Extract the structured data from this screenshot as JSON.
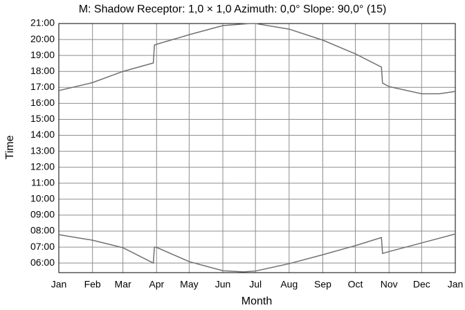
{
  "chart_data": {
    "type": "line",
    "title": "M: Shadow Receptor: 1,0 × 1,0  Azimuth: 0,0°  Slope: 90,0° (15)",
    "xlabel": "Month",
    "ylabel": "Time",
    "xlim": [
      0,
      365
    ],
    "xticks": [
      {
        "value": 0,
        "label": "Jan"
      },
      {
        "value": 31,
        "label": "Feb"
      },
      {
        "value": 59,
        "label": "Mar"
      },
      {
        "value": 90,
        "label": "Apr"
      },
      {
        "value": 120,
        "label": "May"
      },
      {
        "value": 151,
        "label": "Jun"
      },
      {
        "value": 181,
        "label": "Jul"
      },
      {
        "value": 212,
        "label": "Aug"
      },
      {
        "value": 243,
        "label": "Sep"
      },
      {
        "value": 273,
        "label": "Oct"
      },
      {
        "value": 304,
        "label": "Nov"
      },
      {
        "value": 334,
        "label": "Dec"
      },
      {
        "value": 365,
        "label": "Jan"
      }
    ],
    "ylim": [
      5.4,
      21
    ],
    "yticks": [
      {
        "value": 6,
        "label": "06:00"
      },
      {
        "value": 7,
        "label": "07:00"
      },
      {
        "value": 8,
        "label": "08:00"
      },
      {
        "value": 9,
        "label": "09:00"
      },
      {
        "value": 10,
        "label": "10:00"
      },
      {
        "value": 11,
        "label": "11:00"
      },
      {
        "value": 12,
        "label": "12:00"
      },
      {
        "value": 13,
        "label": "13:00"
      },
      {
        "value": 14,
        "label": "14:00"
      },
      {
        "value": 15,
        "label": "15:00"
      },
      {
        "value": 16,
        "label": "16:00"
      },
      {
        "value": 17,
        "label": "17:00"
      },
      {
        "value": 18,
        "label": "18:00"
      },
      {
        "value": 19,
        "label": "19:00"
      },
      {
        "value": 20,
        "label": "20:00"
      },
      {
        "value": 21,
        "label": "21:00"
      }
    ],
    "grid": true,
    "series": [
      {
        "color": "#707070",
        "x": [
          0,
          31,
          59,
          87,
          88,
          90,
          120,
          151,
          176,
          181,
          212,
          243,
          273,
          297,
          298,
          304,
          334,
          350,
          365
        ],
        "values": [
          16.8,
          17.3,
          18.0,
          18.53,
          19.65,
          19.7,
          20.3,
          20.87,
          21.0,
          21.0,
          20.65,
          19.96,
          19.1,
          18.27,
          17.27,
          17.05,
          16.6,
          16.6,
          16.75
        ]
      },
      {
        "color": "#707070",
        "x": [
          0,
          31,
          59,
          87,
          88,
          90,
          120,
          151,
          170,
          181,
          212,
          243,
          273,
          297,
          298,
          304,
          334,
          365
        ],
        "values": [
          7.78,
          7.43,
          6.96,
          6.0,
          7.0,
          6.98,
          6.09,
          5.52,
          5.45,
          5.5,
          5.96,
          6.52,
          7.09,
          7.6,
          6.6,
          6.72,
          7.26,
          7.82
        ]
      }
    ]
  }
}
